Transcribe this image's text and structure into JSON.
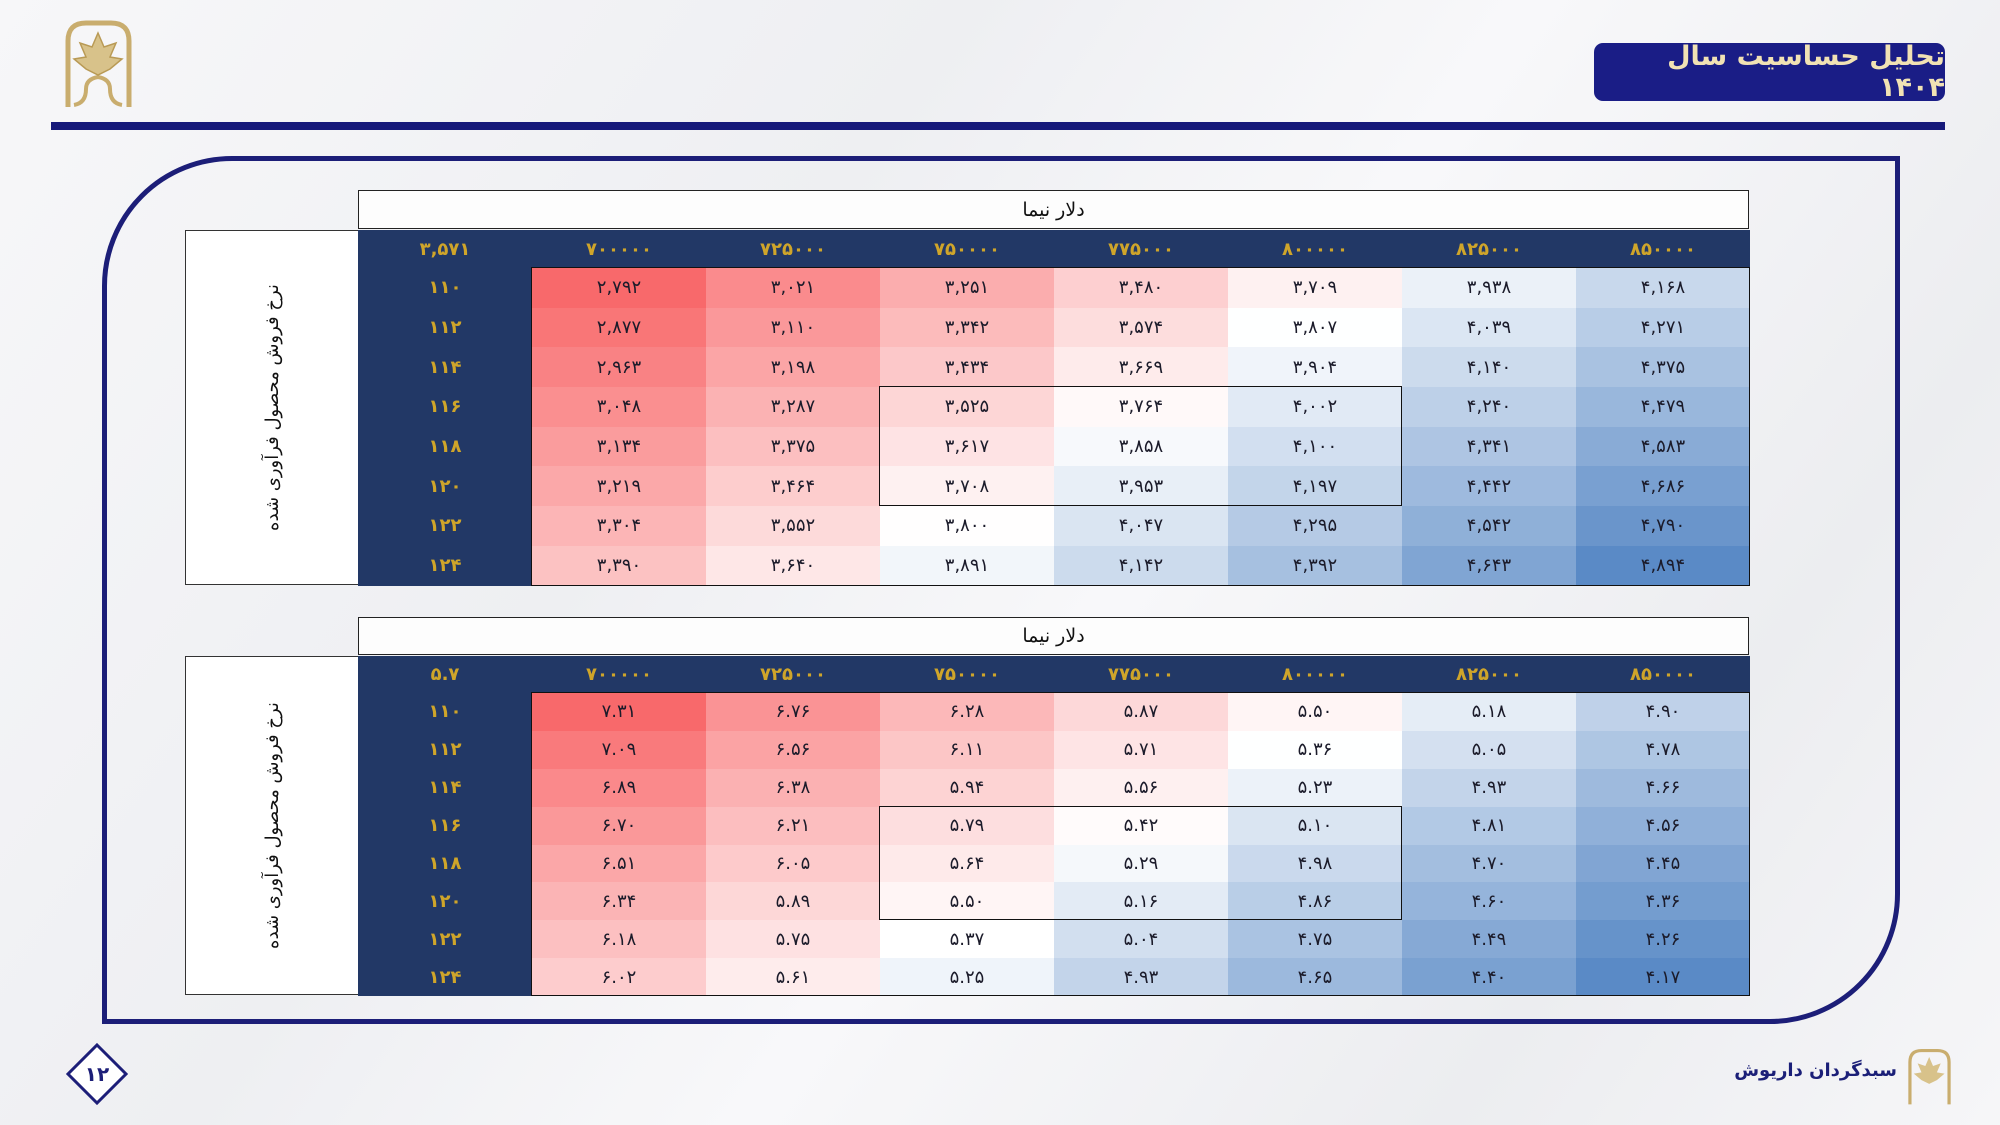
{
  "header": {
    "title": "تحلیل حساسیت سال ۱۴۰۴"
  },
  "footer": {
    "company": "سبدگردان داریوش",
    "page_number": "۱۲"
  },
  "colors": {
    "brand_navy": "#1a1d86",
    "table_header": "#223866",
    "gold": "#cfa52a",
    "low_red": "#f8696b",
    "mid_white": "#ffffff",
    "high_blue": "#5a8ac6"
  },
  "tables": [
    {
      "top_label": "دلار نیما",
      "side_label": "نرخ فروش محصول فرآوری شده",
      "corner": "۳,۵۷۱",
      "columns": [
        "۷۰۰۰۰۰",
        "۷۲۵۰۰۰",
        "۷۵۰۰۰۰",
        "۷۷۵۰۰۰",
        "۸۰۰۰۰۰",
        "۸۲۵۰۰۰",
        "۸۵۰۰۰۰"
      ],
      "rows": [
        "۱۱۰",
        "۱۱۲",
        "۱۱۴",
        "۱۱۶",
        "۱۱۸",
        "۱۲۰",
        "۱۲۲",
        "۱۲۴"
      ],
      "high_is_red": false,
      "cells": [
        [
          "۲,۷۹۲",
          "۳,۰۲۱",
          "۳,۲۵۱",
          "۳,۴۸۰",
          "۳,۷۰۹",
          "۳,۹۳۸",
          "۴,۱۶۸"
        ],
        [
          "۲,۸۷۷",
          "۳,۱۱۰",
          "۳,۳۴۲",
          "۳,۵۷۴",
          "۳,۸۰۷",
          "۴,۰۳۹",
          "۴,۲۷۱"
        ],
        [
          "۲,۹۶۳",
          "۳,۱۹۸",
          "۳,۴۳۴",
          "۳,۶۶۹",
          "۳,۹۰۴",
          "۴,۱۴۰",
          "۴,۳۷۵"
        ],
        [
          "۳,۰۴۸",
          "۳,۲۸۷",
          "۳,۵۲۵",
          "۳,۷۶۴",
          "۴,۰۰۲",
          "۴,۲۴۰",
          "۴,۴۷۹"
        ],
        [
          "۳,۱۳۴",
          "۳,۳۷۵",
          "۳,۶۱۷",
          "۳,۸۵۸",
          "۴,۱۰۰",
          "۴,۳۴۱",
          "۴,۵۸۳"
        ],
        [
          "۳,۲۱۹",
          "۳,۴۶۴",
          "۳,۷۰۸",
          "۳,۹۵۳",
          "۴,۱۹۷",
          "۴,۴۴۲",
          "۴,۶۸۶"
        ],
        [
          "۳,۳۰۴",
          "۳,۵۵۲",
          "۳,۸۰۰",
          "۴,۰۴۷",
          "۴,۲۹۵",
          "۴,۵۴۲",
          "۴,۷۹۰"
        ],
        [
          "۳,۳۹۰",
          "۳,۶۴۰",
          "۳,۸۹۱",
          "۴,۱۴۲",
          "۴,۳۹۲",
          "۴,۶۴۳",
          "۴,۸۹۴"
        ]
      ]
    },
    {
      "top_label": "دلار نیما",
      "side_label": "نرخ فروش محصول فرآوری شده",
      "corner": "۵.۷",
      "columns": [
        "۷۰۰۰۰۰",
        "۷۲۵۰۰۰",
        "۷۵۰۰۰۰",
        "۷۷۵۰۰۰",
        "۸۰۰۰۰۰",
        "۸۲۵۰۰۰",
        "۸۵۰۰۰۰"
      ],
      "rows": [
        "۱۱۰",
        "۱۱۲",
        "۱۱۴",
        "۱۱۶",
        "۱۱۸",
        "۱۲۰",
        "۱۲۲",
        "۱۲۴"
      ],
      "high_is_red": true,
      "cells": [
        [
          "۷.۳۱",
          "۶.۷۶",
          "۶.۲۸",
          "۵.۸۷",
          "۵.۵۰",
          "۵.۱۸",
          "۴.۹۰"
        ],
        [
          "۷.۰۹",
          "۶.۵۶",
          "۶.۱۱",
          "۵.۷۱",
          "۵.۳۶",
          "۵.۰۵",
          "۴.۷۸"
        ],
        [
          "۶.۸۹",
          "۶.۳۸",
          "۵.۹۴",
          "۵.۵۶",
          "۵.۲۳",
          "۴.۹۳",
          "۴.۶۶"
        ],
        [
          "۶.۷۰",
          "۶.۲۱",
          "۵.۷۹",
          "۵.۴۲",
          "۵.۱۰",
          "۴.۸۱",
          "۴.۵۶"
        ],
        [
          "۶.۵۱",
          "۶.۰۵",
          "۵.۶۴",
          "۵.۲۹",
          "۴.۹۸",
          "۴.۷۰",
          "۴.۴۵"
        ],
        [
          "۶.۳۴",
          "۵.۸۹",
          "۵.۵۰",
          "۵.۱۶",
          "۴.۸۶",
          "۴.۶۰",
          "۴.۳۶"
        ],
        [
          "۶.۱۸",
          "۵.۷۵",
          "۵.۳۷",
          "۵.۰۴",
          "۴.۷۵",
          "۴.۴۹",
          "۴.۲۶"
        ],
        [
          "۶.۰۲",
          "۵.۶۱",
          "۵.۲۵",
          "۴.۹۳",
          "۴.۶۵",
          "۴.۴۰",
          "۴.۱۷"
        ]
      ]
    }
  ]
}
